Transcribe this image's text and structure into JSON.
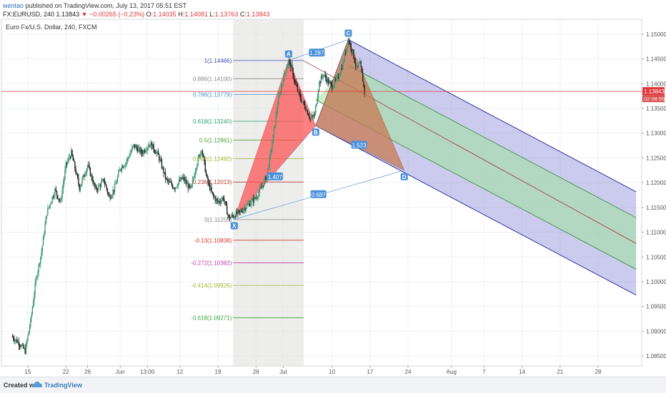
{
  "header": {
    "user": "wentao",
    "published_text": "published on TradingView.com, July 13, 2017 05:51 EST",
    "symbol": "FX:EURUSD, 240",
    "last": "1.13843",
    "change": "−0.00265 (−0.23%)",
    "o_label": "O:",
    "o_value": "1.14035",
    "h_label": "H:",
    "h_value": "1.14081",
    "l_label": "L:",
    "l_value": "1.13763",
    "c_label": "C:",
    "c_value": "1.13843"
  },
  "symbol_title": "Euro Fx/U.S. Dollar, 240, FXCM",
  "footer": {
    "created_with": "Created with",
    "brand": "TradingView"
  },
  "colors": {
    "bull": "#3d9970",
    "bear": "#222222",
    "current_price_line": "#e0363b",
    "pitchfork_blue": "#3232a0",
    "pitchfork_green": "#2e8b2e",
    "median_red": "#a33",
    "harmonic_red": "#ff4d4d",
    "harmonic_brown": "#c97a52"
  },
  "chart_data": {
    "type": "candlestick",
    "instrument": "EURUSD",
    "interval": "240",
    "ylim": [
      1.083,
      1.153
    ],
    "y_ticks": [
      1.085,
      1.09,
      1.095,
      1.1,
      1.105,
      1.11,
      1.115,
      1.12,
      1.125,
      1.13,
      1.135,
      1.14,
      1.145,
      1.15
    ],
    "x_ticks": [
      {
        "label": "15",
        "day": 0
      },
      {
        "label": "22",
        "day": 7
      },
      {
        "label": "26",
        "day": 11
      },
      {
        "label": "Jun",
        "day": 17
      },
      {
        "label": "13:00",
        "day": 22
      },
      {
        "label": "12",
        "day": 28
      },
      {
        "label": "19",
        "day": 35
      },
      {
        "label": "26",
        "day": 42
      },
      {
        "label": "Jul",
        "day": 47
      },
      {
        "label": "10",
        "day": 56
      },
      {
        "label": "17",
        "day": 63
      },
      {
        "label": "24",
        "day": 70
      },
      {
        "label": "Aug",
        "day": 78
      },
      {
        "label": "7",
        "day": 84
      },
      {
        "label": "14",
        "day": 91
      },
      {
        "label": "21",
        "day": 98
      },
      {
        "label": "28",
        "day": 105
      }
    ],
    "current_price": {
      "value": 1.13843,
      "label": "1.13843",
      "countdown": "02:08:55"
    },
    "price_path": [
      [
        -3.0,
        1.089
      ],
      [
        -1.5,
        1.0875
      ],
      [
        -0.5,
        1.086
      ],
      [
        0.5,
        1.092
      ],
      [
        1.5,
        1.1005
      ],
      [
        2.5,
        1.106
      ],
      [
        3.5,
        1.114
      ],
      [
        5.0,
        1.1185
      ],
      [
        6.0,
        1.116
      ],
      [
        7.0,
        1.1235
      ],
      [
        8.0,
        1.126
      ],
      [
        9.5,
        1.119
      ],
      [
        11.0,
        1.1235
      ],
      [
        12.5,
        1.1185
      ],
      [
        14.0,
        1.1205
      ],
      [
        15.0,
        1.117
      ],
      [
        16.0,
        1.119
      ],
      [
        17.0,
        1.123
      ],
      [
        18.0,
        1.124
      ],
      [
        19.5,
        1.1275
      ],
      [
        21.0,
        1.126
      ],
      [
        22.5,
        1.128
      ],
      [
        24.0,
        1.1255
      ],
      [
        25.5,
        1.1205
      ],
      [
        27.0,
        1.119
      ],
      [
        28.5,
        1.121
      ],
      [
        30.0,
        1.1185
      ],
      [
        31.0,
        1.1235
      ],
      [
        32.0,
        1.127
      ],
      [
        33.0,
        1.1205
      ],
      [
        34.0,
        1.1175
      ],
      [
        35.0,
        1.116
      ],
      [
        36.0,
        1.117
      ],
      [
        37.0,
        1.1128
      ],
      [
        38.0,
        1.1135
      ],
      [
        39.0,
        1.114
      ],
      [
        40.0,
        1.115
      ],
      [
        41.0,
        1.116
      ],
      [
        42.0,
        1.117
      ],
      [
        43.0,
        1.119
      ],
      [
        44.0,
        1.1215
      ],
      [
        45.0,
        1.128
      ],
      [
        46.0,
        1.136
      ],
      [
        47.0,
        1.141
      ],
      [
        48.0,
        1.1446
      ],
      [
        48.6,
        1.143
      ],
      [
        49.2,
        1.14
      ],
      [
        50.2,
        1.137
      ],
      [
        51.2,
        1.135
      ],
      [
        52.0,
        1.133
      ],
      [
        52.8,
        1.1335
      ],
      [
        53.6,
        1.14
      ],
      [
        54.4,
        1.142
      ],
      [
        55.2,
        1.1405
      ],
      [
        56.0,
        1.1395
      ],
      [
        57.0,
        1.141
      ],
      [
        58.0,
        1.144
      ],
      [
        59.0,
        1.1489
      ],
      [
        59.8,
        1.1465
      ],
      [
        60.5,
        1.143
      ],
      [
        61.2,
        1.144
      ],
      [
        62.0,
        1.1384
      ]
    ],
    "shaded_region": {
      "from_day": 37.8,
      "to_day": 50.8
    },
    "fib_retracement": {
      "from_day": 37.8,
      "to_day": 50.8,
      "levels": [
        {
          "ratio": "1",
          "price": 1.14466,
          "label": "1(1.14466)",
          "color": "#3a4ea8"
        },
        {
          "ratio": "0.886",
          "price": 1.141,
          "label": "0.886(1.14100)",
          "color": "#888888"
        },
        {
          "ratio": "0.786",
          "price": 1.13779,
          "label": "0.786(1.13779)",
          "color": "#3b8ed0"
        },
        {
          "ratio": "0.618",
          "price": 1.1324,
          "label": "0.618(1.13240)",
          "color": "#21a067"
        },
        {
          "ratio": "0.5",
          "price": 1.12861,
          "label": "0.5(1.12861)",
          "color": "#4c9f35"
        },
        {
          "ratio": "0.382",
          "price": 1.12482,
          "label": "0.382(1.12482)",
          "color": "#a4b62a"
        },
        {
          "ratio": "0.236",
          "price": 1.12013,
          "label": "0.236(1.12013)",
          "color": "#c0392b"
        },
        {
          "ratio": "0",
          "price": 1.11255,
          "label": "0(1.11255)",
          "color": "#888888"
        },
        {
          "ratio": "-0.13",
          "price": 1.10838,
          "label": "-0.13(1.10838)",
          "color": "#d9342b"
        },
        {
          "ratio": "-0.272",
          "price": 1.10382,
          "label": "-0.272(1.10382)",
          "color": "#c03aa5"
        },
        {
          "ratio": "-0.414",
          "price": 1.09926,
          "label": "-0.414(1.09926)",
          "color": "#a4b62a"
        },
        {
          "ratio": "-0.618",
          "price": 1.09271,
          "label": "-0.618(1.09271)",
          "color": "#36a536"
        }
      ]
    },
    "harmonic_pattern": {
      "points": [
        {
          "label": "X",
          "day": 38.0,
          "price": 1.1126
        },
        {
          "label": "A",
          "day": 48.0,
          "price": 1.1447
        },
        {
          "label": "B",
          "day": 53.0,
          "price": 1.1315
        },
        {
          "label": "C",
          "day": 59.0,
          "price": 1.1489
        },
        {
          "label": "D",
          "day": 69.3,
          "price": 1.1225
        }
      ],
      "ratios": [
        {
          "label": "1.287",
          "day": 53.2,
          "price": 1.1462
        },
        {
          "label": "1.407",
          "day": 45.5,
          "price": 1.1212
        },
        {
          "label": "1.523",
          "day": 61.0,
          "price": 1.1276
        },
        {
          "label": "0.687",
          "day": 53.5,
          "price": 1.1176
        }
      ]
    },
    "pitchfork": {
      "pivot": {
        "day": 50.8,
        "price": 1.1446
      },
      "a": {
        "day": 59.0,
        "price": 1.1489
      },
      "b": {
        "day": 53.0,
        "price": 1.1315
      },
      "median_slope_per_day": -0.00058
    }
  }
}
